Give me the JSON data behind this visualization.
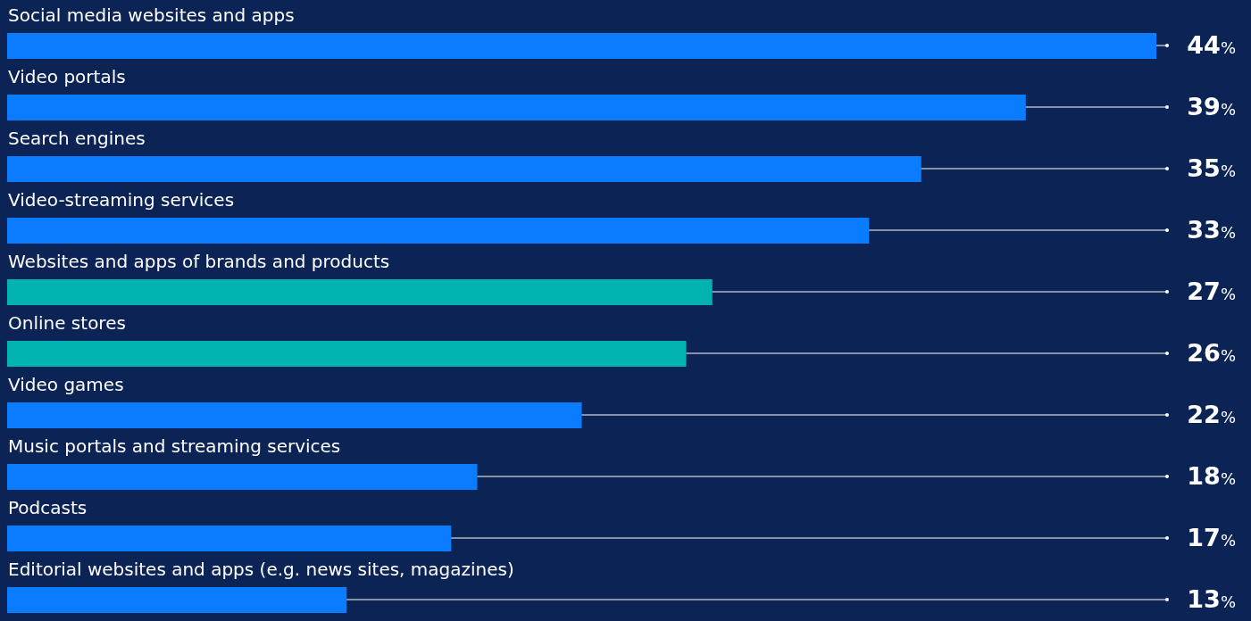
{
  "chart_data": {
    "type": "bar",
    "orientation": "horizontal",
    "categories": [
      "Social media websites and apps",
      "Video portals",
      "Search engines",
      "Video-streaming services",
      "Websites and apps of brands and products",
      "Online stores",
      "Video games",
      "Music portals and streaming services",
      "Podcasts",
      "Editorial websites and apps (e.g. news sites, magazines)"
    ],
    "values": [
      44,
      39,
      35,
      33,
      27,
      26,
      22,
      18,
      17,
      13
    ],
    "colors": [
      "#0a7cff",
      "#0a7cff",
      "#0a7cff",
      "#0a7cff",
      "#00b2b0",
      "#00b2b0",
      "#0a7cff",
      "#0a7cff",
      "#0a7cff",
      "#0a7cff"
    ],
    "value_labels": [
      "44%",
      "39%",
      "35%",
      "33%",
      "27%",
      "26%",
      "22%",
      "18%",
      "17%",
      "13%"
    ]
  }
}
